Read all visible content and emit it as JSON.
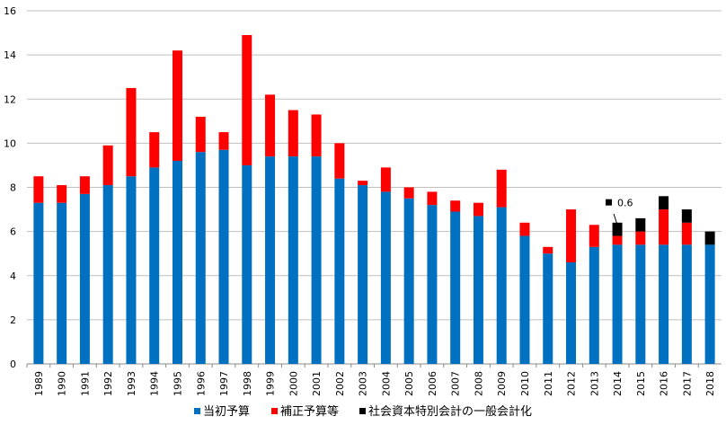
{
  "chart_data": {
    "type": "bar",
    "stacked": true,
    "categories": [
      "1989",
      "1990",
      "1991",
      "1992",
      "1993",
      "1994",
      "1995",
      "1996",
      "1997",
      "1998",
      "1999",
      "2000",
      "2001",
      "2002",
      "2003",
      "2004",
      "2005",
      "2006",
      "2007",
      "2008",
      "2009",
      "2010",
      "2011",
      "2012",
      "2013",
      "2014",
      "2015",
      "2016",
      "2017",
      "2018"
    ],
    "series": [
      {
        "name": "当初予算",
        "color": "#0070C0",
        "values": [
          7.3,
          7.3,
          7.7,
          8.1,
          8.5,
          8.9,
          9.2,
          9.6,
          9.7,
          9.0,
          9.4,
          9.4,
          9.4,
          8.4,
          8.1,
          7.8,
          7.5,
          7.2,
          6.9,
          6.7,
          7.1,
          5.8,
          5.0,
          4.6,
          5.3,
          5.4,
          5.4,
          5.4,
          5.4,
          5.4
        ]
      },
      {
        "name": "補正予算等",
        "color": "#FF0000",
        "values": [
          1.2,
          0.8,
          0.8,
          1.8,
          4.0,
          1.6,
          5.0,
          1.6,
          0.8,
          5.9,
          2.8,
          2.1,
          1.9,
          1.6,
          0.2,
          1.1,
          0.5,
          0.6,
          0.5,
          0.6,
          1.7,
          0.6,
          0.3,
          2.4,
          1.0,
          0.4,
          0.6,
          1.6,
          1.0,
          0.0
        ]
      },
      {
        "name": "社会資本特別会計の一般会計化",
        "color": "#000000",
        "values": [
          0,
          0,
          0,
          0,
          0,
          0,
          0,
          0,
          0,
          0,
          0,
          0,
          0,
          0,
          0,
          0,
          0,
          0,
          0,
          0,
          0,
          0,
          0,
          0,
          0,
          0.6,
          0.6,
          0.6,
          0.6,
          0.6
        ]
      }
    ],
    "ylim": [
      0,
      16
    ],
    "yticks": [
      0,
      2,
      4,
      6,
      8,
      10,
      12,
      14,
      16
    ],
    "grid": true,
    "legend_position": "bottom",
    "annotation": {
      "text": "0.6",
      "category": "2014"
    }
  }
}
